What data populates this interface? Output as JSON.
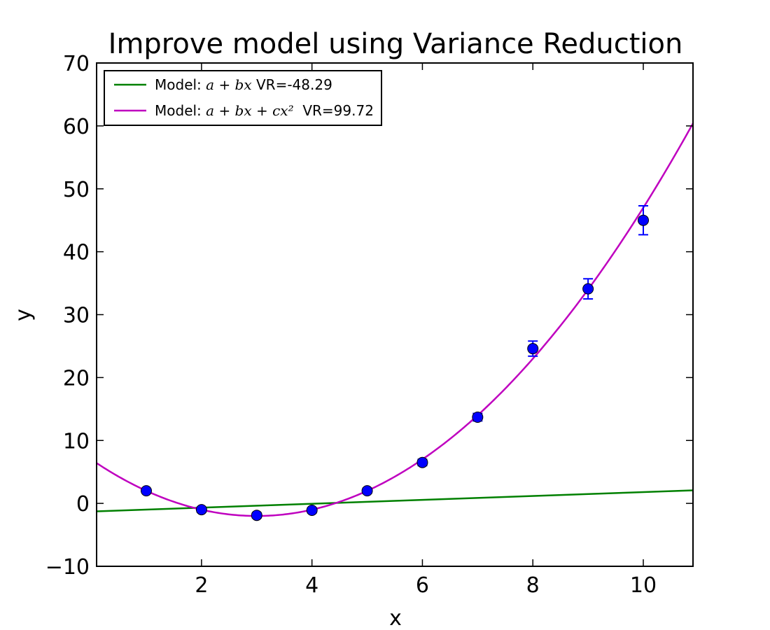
{
  "chart_data": {
    "type": "scatter",
    "title": "Improve model using Variance Reduction",
    "xlabel": "x",
    "ylabel": "y",
    "xlim": [
      0.1,
      10.9
    ],
    "ylim": [
      -10,
      70
    ],
    "x_ticks": [
      2,
      4,
      6,
      8,
      10
    ],
    "x_tick_labels": [
      "2",
      "4",
      "6",
      "8",
      "10"
    ],
    "y_ticks": [
      -10,
      0,
      10,
      20,
      30,
      40,
      50,
      60,
      70
    ],
    "y_tick_labels": [
      "−10",
      "0",
      "10",
      "20",
      "30",
      "40",
      "50",
      "60",
      "70"
    ],
    "grid": false,
    "legend_position": "top-left",
    "points": {
      "color": "#0000ff",
      "x": [
        1,
        2,
        3,
        4,
        5,
        6,
        7,
        8,
        9,
        10
      ],
      "y": [
        2.0,
        -1.0,
        -1.9,
        -1.1,
        2.0,
        6.5,
        13.7,
        24.6,
        34.1,
        45.0
      ],
      "yerr": [
        0.3,
        0.4,
        0.4,
        0.4,
        0.4,
        0.5,
        0.6,
        1.2,
        1.6,
        2.3
      ]
    },
    "series": [
      {
        "name_prefix": "Model: ",
        "name_math": "a + bx",
        "name_suffix": " VR=-48.29",
        "type": "line",
        "color": "#008000",
        "coef": [
          -1.3,
          0.31,
          0
        ]
      },
      {
        "name_prefix": "Model: ",
        "name_math": "a + bx + cx²",
        "name_suffix": "  VR=99.72",
        "type": "line",
        "color": "#bf00bf",
        "coef": [
          7.0,
          -6.0,
          1.0
        ]
      }
    ]
  }
}
